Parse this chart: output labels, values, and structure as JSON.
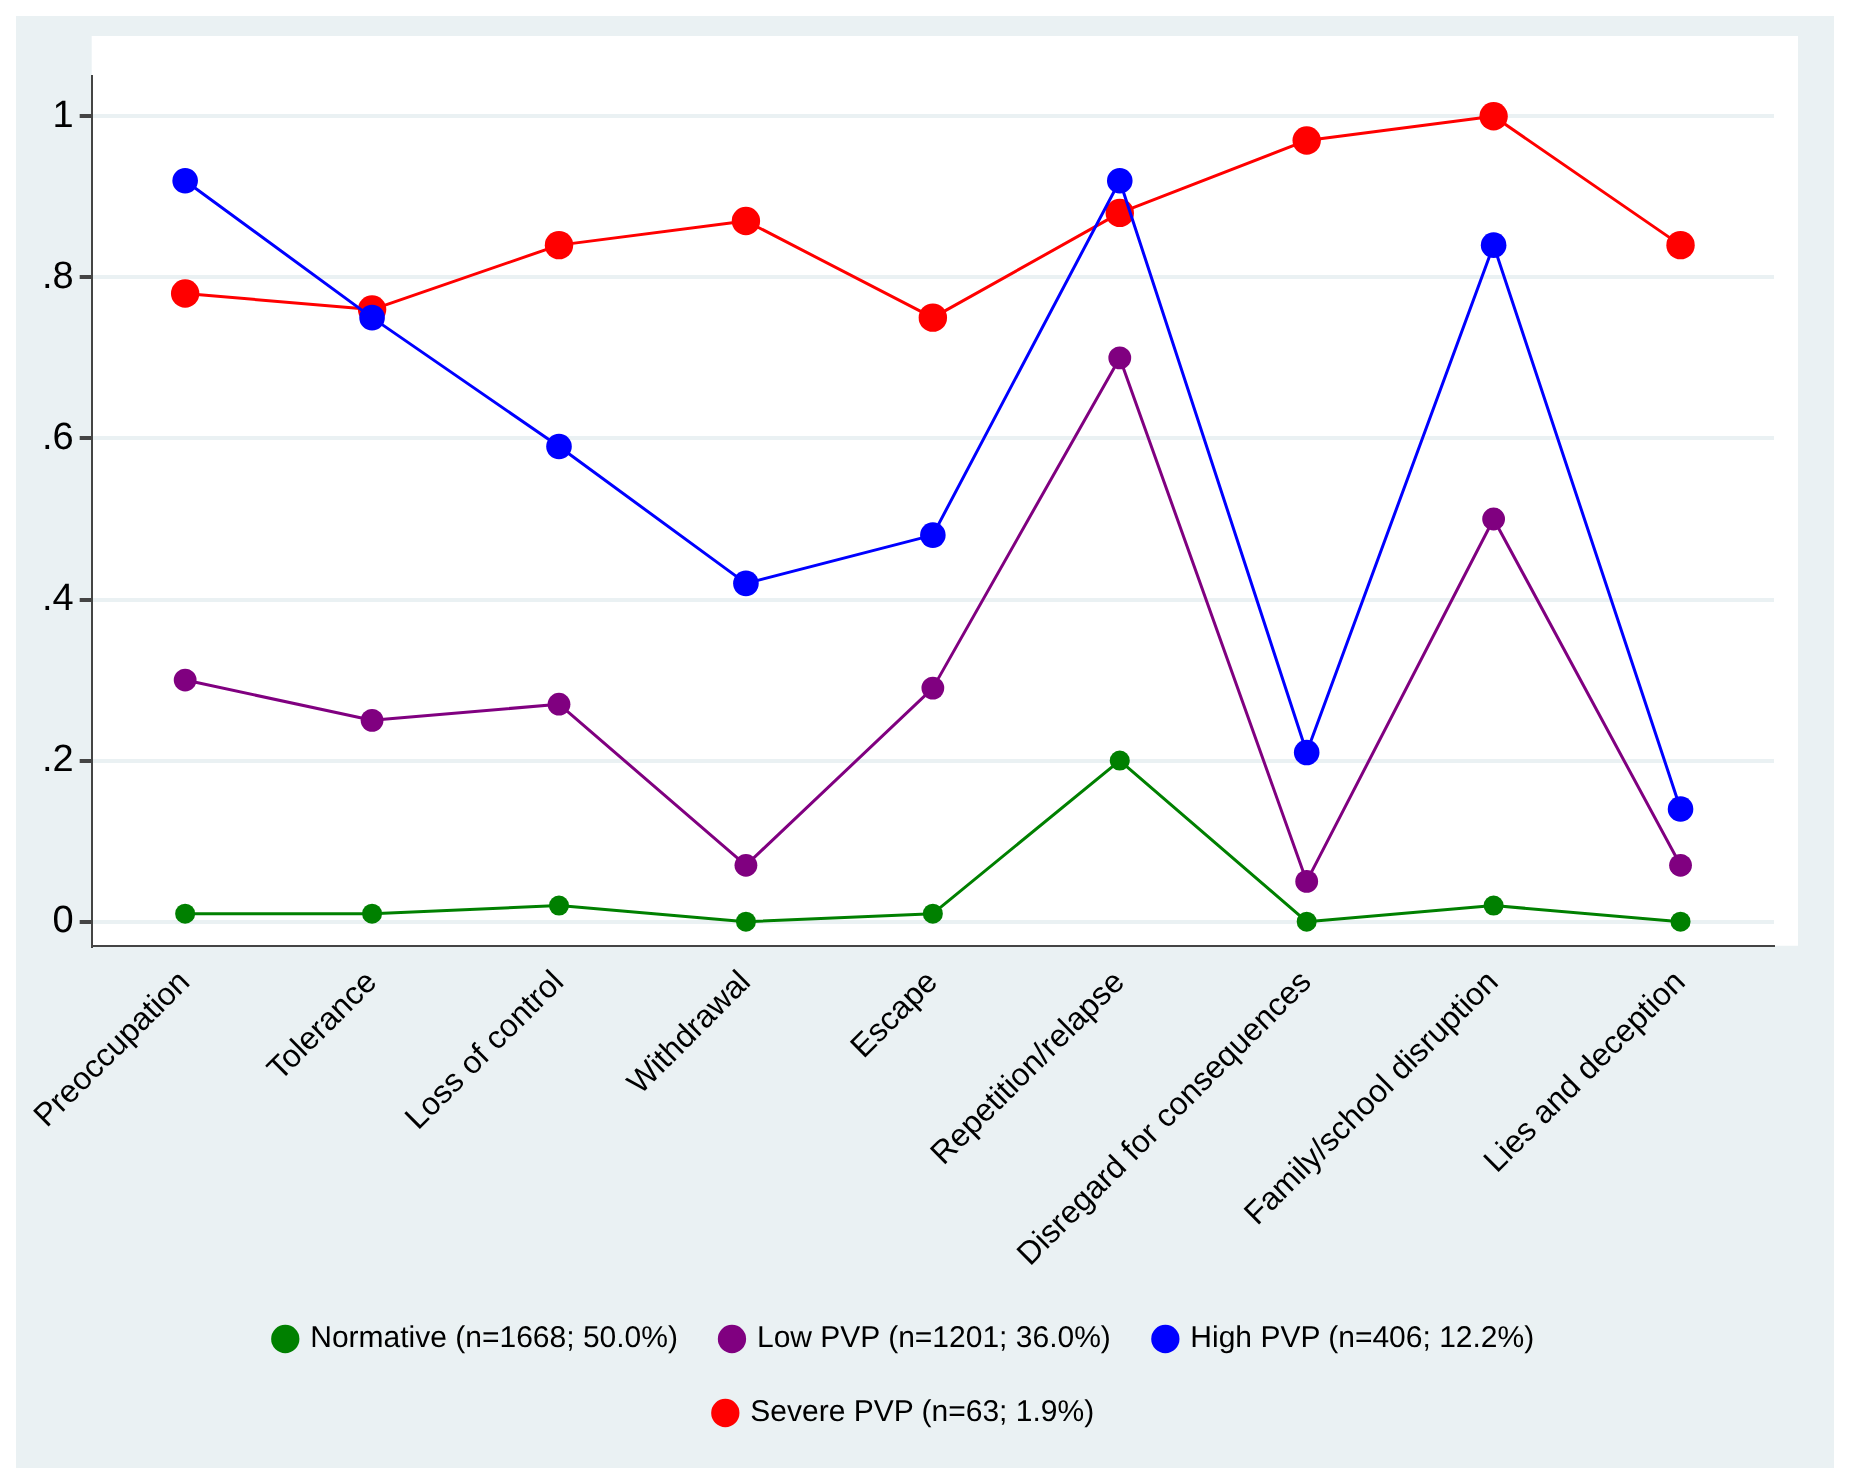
{
  "chart_data": {
    "type": "line",
    "categories": [
      "Preoccupation",
      "Tolerance",
      "Loss of control",
      "Withdrawal",
      "Escape",
      "Repetition/relapse",
      "Disregard for consequences",
      "Family/school disruption",
      "Lies and deception"
    ],
    "series": [
      {
        "name": "Severe PVP (n=63; 1.9%)",
        "color": "#ff0000",
        "values": [
          0.78,
          0.76,
          0.84,
          0.87,
          0.75,
          0.88,
          0.97,
          1.0,
          0.84
        ]
      },
      {
        "name": "High PVP (n=406; 12.2%)",
        "color": "#0000ff",
        "values": [
          0.92,
          0.75,
          0.59,
          0.42,
          0.48,
          0.92,
          0.21,
          0.84,
          0.14
        ]
      },
      {
        "name": "Low PVP (n=1201; 36.0%)",
        "color": "#800080",
        "values": [
          0.3,
          0.25,
          0.27,
          0.07,
          0.29,
          0.7,
          0.05,
          0.5,
          0.07
        ]
      },
      {
        "name": "Normative (n=1668; 50.0%)",
        "color": "#008000",
        "values": [
          0.01,
          0.01,
          0.02,
          0.0,
          0.01,
          0.2,
          0.0,
          0.02,
          0.0
        ]
      }
    ],
    "ylim": [
      -0.03,
      1.05
    ],
    "yticks": [
      0,
      {
        "value": 0.2,
        "label": ".2"
      },
      {
        "value": 0.4,
        "label": ".4"
      },
      {
        "value": 0.6,
        "label": ".6"
      },
      {
        "value": 0.8,
        "label": ".8"
      },
      1
    ],
    "grid": "y",
    "legend": "bottom",
    "marker": "circle",
    "line_style": "solid"
  }
}
